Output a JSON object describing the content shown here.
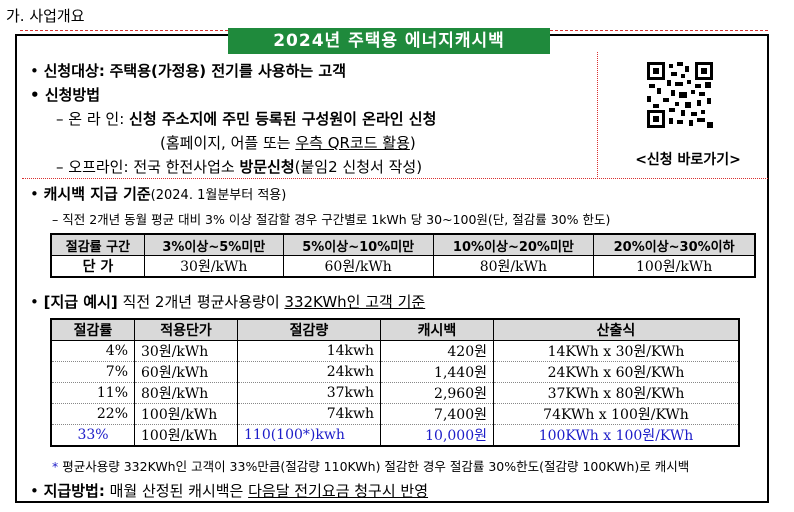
{
  "section_heading": "가. 사업개요",
  "title": "2024년 주택용 에너지캐시백",
  "target": {
    "label": "신청대상:",
    "text": "주택용(가정용) 전기를 사용하는 고객"
  },
  "method": {
    "label": "신청방법",
    "online_label": "– 온 라 인:",
    "online_text": "신청 주소지에 주민 등록된 구성원이 온라인 신청",
    "online_sub_prefix": "(홈페이지, 어플 또는 ",
    "online_sub_link": "우측 QR코드 활용",
    "online_sub_suffix": ")",
    "offline_label": "– 오프라인:",
    "offline_text_a": "전국 한전사업소 ",
    "offline_text_b": "방문신청",
    "offline_text_c": "(붙임2 신청서 작성)"
  },
  "qr_caption": "<신청 바로가기>",
  "criteria": {
    "label": "캐시백 지급 기준",
    "note": "(2024. 1월분부터 적용)",
    "desc": "– 직전 2개년 동월 평균 대비 3% 이상 절감할 경우 구간별로 1kWh 당 30~100원(단, 절감률 30% 한도)"
  },
  "rate_table": {
    "header": [
      "절감률 구간",
      "3%이상~5%미만",
      "5%이상~10%미만",
      "10%이상~20%미만",
      "20%이상~30%이하"
    ],
    "row_label": "단 가",
    "row": [
      "30원/kWh",
      "60원/kWh",
      "80원/kWh",
      "100원/kWh"
    ]
  },
  "example": {
    "label": "[지급 예시]",
    "text_a": "직전 2개년 평균사용량이 ",
    "text_b": "332KWh인 고객 기준"
  },
  "example_table": {
    "header": [
      "절감률",
      "적용단가",
      "절감량",
      "캐시백",
      "산출식"
    ],
    "rows": [
      [
        "4%",
        "30원/kWh",
        "14kwh",
        "420원",
        "14KWh x 30원/KWh"
      ],
      [
        "7%",
        "60원/kWh",
        "24kwh",
        "1,440원",
        "24KWh x 60원/KWh"
      ],
      [
        "11%",
        "80원/kWh",
        "37kwh",
        "2,960원",
        "37KWh x 80원/KWh"
      ],
      [
        "22%",
        "100원/kWh",
        "74kwh",
        "7,400원",
        "74KWh x 100원/KWh"
      ]
    ],
    "highlight_row": [
      "33%",
      "100원/kWh",
      "110(100*)kwh",
      "10,000원",
      "100KWh x 100원/KWh"
    ]
  },
  "footnote": {
    "mark": "*",
    "text": "평균사용량 332KWh인 고객이 33%만큼(절감량 110KWh) 절감한 경우 절감률 30%한도(절감량 100KWh)로 캐시백"
  },
  "payment": {
    "label": "지급방법:",
    "text_a": "매월 산정된 캐시백은 ",
    "text_b": "다음달 전기요금 청구시 반영"
  },
  "colors": {
    "title_bg": "#1f8a3c",
    "dashed_border": "#d93030",
    "highlight_text": "#1c1cc8",
    "header_bg": "#d9d9d9"
  }
}
